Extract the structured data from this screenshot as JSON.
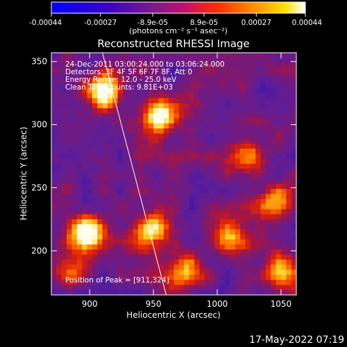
{
  "chart_data": {
    "type": "heatmap",
    "title": "Reconstructed RHESSI Image",
    "xlabel": "Heliocentric X (arcsec)",
    "ylabel": "Heliocentric Y (arcsec)",
    "xlim": [
      870,
      1062
    ],
    "ylim": [
      165,
      357
    ],
    "x_ticks": [
      "900",
      "950",
      "1000",
      "1050"
    ],
    "x_tick_values": [
      900,
      950,
      1000,
      1050
    ],
    "y_ticks": [
      "200",
      "250",
      "300",
      "350"
    ],
    "y_tick_values": [
      200,
      250,
      300,
      350
    ],
    "colorbar": {
      "min": -0.00044,
      "max": 0.00044,
      "tick_labels": [
        "-0.00044",
        "-0.00027",
        "-8.9e-05",
        "8.9e-05",
        "0.00027",
        "0.00044"
      ],
      "tick_values": [
        -0.00044,
        -0.00027,
        -8.9e-05,
        8.9e-05,
        0.00027,
        0.00044
      ],
      "unit_label": "(photons cm⁻² s⁻¹ asec⁻²)"
    },
    "annotations": [
      "24-Dec-2011 03:00:24.000 to 03:06:24.000",
      "Detectors: 3F 4F 5F 6F 7F 8F, Att 0",
      "Energy Range: 12.0 - 25.0 keV",
      "Clean   Total counts: 9.81E+03"
    ],
    "peak_label": "Position of Peak = [911,324]",
    "peak_position": [
      911,
      324
    ],
    "limb_line": [
      [
        910,
        357
      ],
      [
        960,
        165
      ]
    ],
    "bright_regions": [
      {
        "x": 912,
        "y": 327,
        "level": 1.0
      },
      {
        "x": 955,
        "y": 308,
        "level": 0.85
      },
      {
        "x": 899,
        "y": 215,
        "level": 0.9
      },
      {
        "x": 948,
        "y": 215,
        "level": 0.75
      },
      {
        "x": 1025,
        "y": 275,
        "level": 0.7
      },
      {
        "x": 1010,
        "y": 210,
        "level": 0.6
      },
      {
        "x": 1050,
        "y": 185,
        "level": 0.6
      },
      {
        "x": 975,
        "y": 185,
        "level": 0.55
      },
      {
        "x": 885,
        "y": 185,
        "level": 0.5
      },
      {
        "x": 1045,
        "y": 240,
        "level": 0.55
      }
    ]
  },
  "footer": {
    "timestamp": "17-May-2022 07:19"
  }
}
